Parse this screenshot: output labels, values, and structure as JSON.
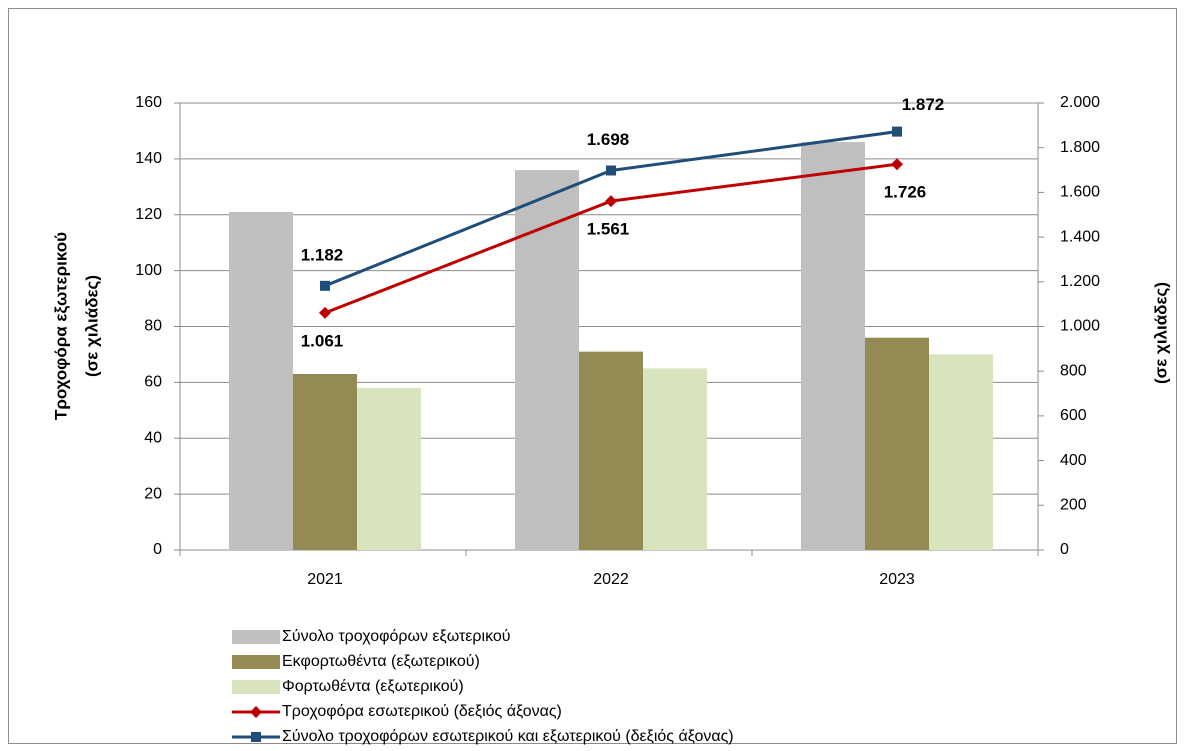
{
  "chart_data": {
    "type": "bar",
    "categories": [
      "2021",
      "2022",
      "2023"
    ],
    "series": [
      {
        "name": "Σύνολο τροχοφόρων εξωτερικού",
        "type": "bar",
        "color": "#bfbfbf",
        "values": [
          121,
          136,
          146
        ]
      },
      {
        "name": "Εκφορτωθέντα (εξωτερικού)",
        "type": "bar",
        "color": "#948a54",
        "values": [
          63,
          71,
          76
        ]
      },
      {
        "name": "Φορτωθέντα  (εξωτερικού)",
        "type": "bar",
        "color": "#d7e4bd",
        "values": [
          58,
          65,
          70
        ]
      },
      {
        "name": "Τροχοφόρα εσωτερικού (δεξιός άξονας)",
        "type": "line",
        "axis": "y2",
        "marker": "diamond",
        "color": "#c00000",
        "values": [
          1061,
          1561,
          1726
        ],
        "value_labels": [
          "1.061",
          "1.561",
          "1.726"
        ]
      },
      {
        "name": "Σύνολο τροχοφόρων εσωτερικού και εξωτερικού (δεξιός άξονας)",
        "type": "line",
        "axis": "y2",
        "marker": "square",
        "color": "#1f4e79",
        "values": [
          1182,
          1698,
          1872
        ],
        "value_labels": [
          "1.182",
          "1.698",
          "1.872"
        ]
      }
    ],
    "y_label": [
      "Τροχοφόρα εξωτερικού",
      "(σε χιλιάδες)"
    ],
    "y2_label": "(σε χιλιάδες)",
    "ylim": [
      0,
      160
    ],
    "yticks": [
      0,
      20,
      40,
      60,
      80,
      100,
      120,
      140,
      160
    ],
    "y2lim": [
      0,
      2000
    ],
    "y2ticks": [
      0,
      200,
      400,
      600,
      800,
      {
        "value": 1000,
        "label": "1.000"
      },
      {
        "value": 1200,
        "label": "1.200"
      },
      {
        "value": 1400,
        "label": "1.400"
      },
      {
        "value": 1600,
        "label": "1.600"
      },
      {
        "value": 1800,
        "label": "1.800"
      },
      {
        "value": 2000,
        "label": "2.000"
      }
    ],
    "grid": true
  }
}
